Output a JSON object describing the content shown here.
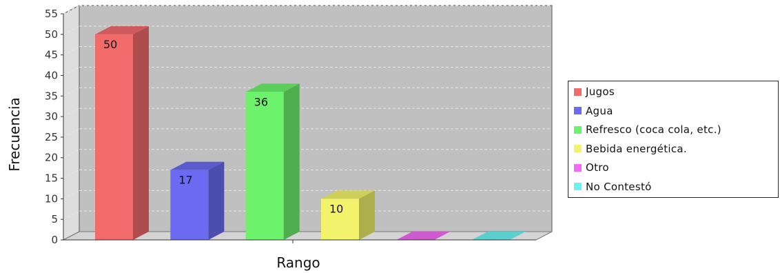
{
  "chart_data": {
    "type": "bar",
    "ylabel": "Frecuencia",
    "xlabel": "Rango",
    "ylim": [
      0,
      55
    ],
    "yticks": [
      0,
      5,
      10,
      15,
      20,
      25,
      30,
      35,
      40,
      45,
      50,
      55
    ],
    "grid": true,
    "legend_position": "right",
    "series": [
      {
        "name": "Jugos",
        "value": 50,
        "label": "50",
        "color": "#f26b6b"
      },
      {
        "name": "Agua",
        "value": 17,
        "label": "17",
        "color": "#6b6bf2"
      },
      {
        "name": "Refresco (coca cola, etc.)",
        "value": 36,
        "label": "36",
        "color": "#6cf26b"
      },
      {
        "name": "Bebida energética.",
        "value": 10,
        "label": "10",
        "color": "#f2f26b"
      },
      {
        "name": "Otro",
        "value": 0,
        "label": "",
        "color": "#f26bf2"
      },
      {
        "name": "No Contestó",
        "value": 0,
        "label": "",
        "color": "#6bf2f2"
      }
    ],
    "colors": {
      "plot_background": "#c0c0c0",
      "side_wall": "#dedede",
      "floor": "#d4d4d4",
      "grid": "#e8e8e8"
    }
  }
}
